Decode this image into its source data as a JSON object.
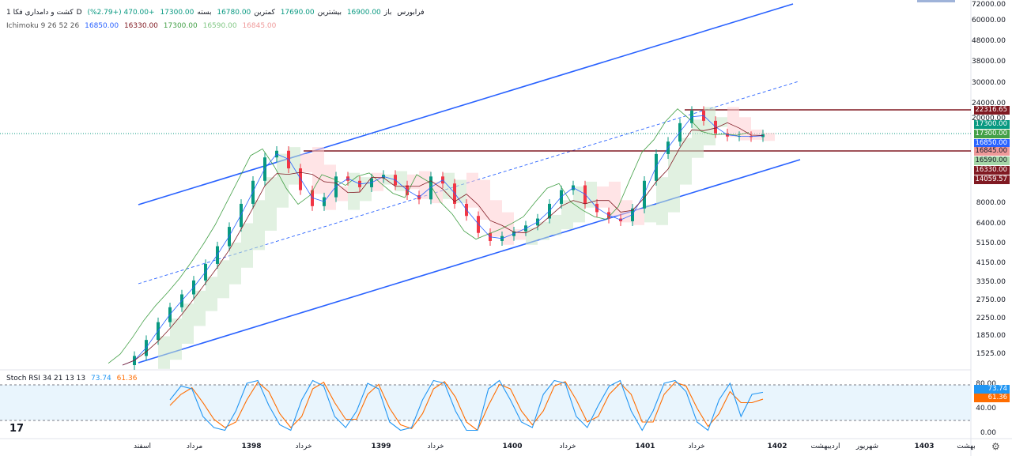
{
  "header": {
    "symbol": "کشت و دامداری فکا",
    "interval": "1D",
    "exchange": "فرابورس",
    "ohlc": [
      {
        "label": "باز",
        "value": "16900.00"
      },
      {
        "label": "بیشترین",
        "value": "17690.00"
      },
      {
        "label": "کمترین",
        "value": "16780.00"
      },
      {
        "label": "بسته",
        "value": "17300.00"
      }
    ],
    "change": "+470.00 (+2.79%)"
  },
  "ichimoku": {
    "title": "Ichimoku 9 26 52 26",
    "values": [
      {
        "value": "16850.00",
        "color": "#2962ff"
      },
      {
        "value": "16330.00",
        "color": "#801922"
      },
      {
        "value": "17300.00",
        "color": "#43a047"
      },
      {
        "value": "16590.00",
        "color": "#a5d6a7"
      },
      {
        "value": "16845.00",
        "color": "#ef9a9a"
      }
    ]
  },
  "stoch": {
    "title": "Stoch RSI 34 21 13 13",
    "k": "73.74",
    "d": "61.36"
  },
  "price_axis": [
    "72000.00",
    "60000.00",
    "48000.00",
    "38000.00",
    "30000.00",
    "24000.00",
    "20000.00",
    "8000.00",
    "6400.00",
    "5150.00",
    "4150.00",
    "3350.00",
    "2750.00",
    "2250.00",
    "1850.00",
    "1525.00"
  ],
  "price_tags": [
    {
      "text": "22316.65",
      "color": "#801922"
    },
    {
      "text": "17300.00",
      "color": "#089981"
    },
    {
      "text": "17300.00",
      "color": "#43a047"
    },
    {
      "text": "16850.00",
      "color": "#2962ff"
    },
    {
      "text": "16845.00",
      "color": "#ef9a9a"
    },
    {
      "text": "16590.00",
      "color": "#a5d6a7"
    },
    {
      "text": "16330.00",
      "color": "#801922"
    },
    {
      "text": "14059.57",
      "color": "#801922"
    }
  ],
  "stoch_axis": [
    "80.00",
    "40.00",
    "0.00"
  ],
  "stoch_tags": [
    {
      "text": "73.74",
      "color": "#2196f3"
    },
    {
      "text": "61.36",
      "color": "#ff6d00"
    }
  ],
  "time_axis": [
    {
      "text": "اسفند",
      "bold": false
    },
    {
      "text": "مرداد",
      "bold": false
    },
    {
      "text": "1398",
      "bold": true
    },
    {
      "text": "خرداد",
      "bold": false
    },
    {
      "text": "1399",
      "bold": true
    },
    {
      "text": "خرداد",
      "bold": false
    },
    {
      "text": "1400",
      "bold": true
    },
    {
      "text": "خرداد",
      "bold": false
    },
    {
      "text": "1401",
      "bold": true
    },
    {
      "text": "خرداد",
      "bold": false
    },
    {
      "text": "1402",
      "bold": true
    },
    {
      "text": "اردیبهشت",
      "bold": false
    },
    {
      "text": "شهریور",
      "bold": false
    },
    {
      "text": "1403",
      "bold": true
    },
    {
      "text": "بهشت",
      "bold": false
    }
  ],
  "chart_data": {
    "type": "line",
    "y_scale": "log",
    "ylim": [
      1400,
      75000
    ],
    "levels": [
      22316.65,
      16845.0
    ],
    "price_series": {
      "name": "Close",
      "values": [
        1450,
        1600,
        1900,
        2300,
        2700,
        3100,
        3600,
        4300,
        5200,
        6400,
        8200,
        10500,
        13500,
        14500,
        12000,
        9500,
        8000,
        8800,
        11000,
        10500,
        9800,
        10800,
        11200,
        10000,
        9000,
        8600,
        11000,
        10200,
        8200,
        7200,
        6000,
        5500,
        5800,
        6100,
        6500,
        7000,
        8200,
        9500,
        10000,
        8200,
        7500,
        7000,
        6800,
        7800,
        10500,
        14000,
        16000,
        19500,
        22300,
        20000,
        17500,
        16900,
        17000,
        16800,
        17300
      ]
    },
    "stoch_k": [
      60,
      85,
      80,
      30,
      10,
      5,
      40,
      90,
      95,
      50,
      15,
      5,
      60,
      95,
      85,
      30,
      10,
      40,
      90,
      80,
      20,
      5,
      10,
      60,
      95,
      90,
      40,
      5,
      5,
      80,
      95,
      60,
      20,
      10,
      70,
      95,
      90,
      30,
      10,
      50,
      85,
      95,
      40,
      5,
      40,
      90,
      95,
      75,
      20,
      5,
      60,
      90,
      30,
      70,
      73.74
    ],
    "stoch_d": [
      50,
      70,
      82,
      55,
      25,
      10,
      20,
      60,
      92,
      75,
      35,
      10,
      30,
      80,
      92,
      55,
      25,
      25,
      70,
      88,
      45,
      15,
      8,
      35,
      80,
      93,
      65,
      20,
      5,
      50,
      88,
      80,
      40,
      15,
      40,
      85,
      93,
      60,
      20,
      30,
      70,
      90,
      70,
      20,
      20,
      70,
      92,
      85,
      45,
      12,
      35,
      75,
      55,
      55,
      61.36
    ]
  }
}
